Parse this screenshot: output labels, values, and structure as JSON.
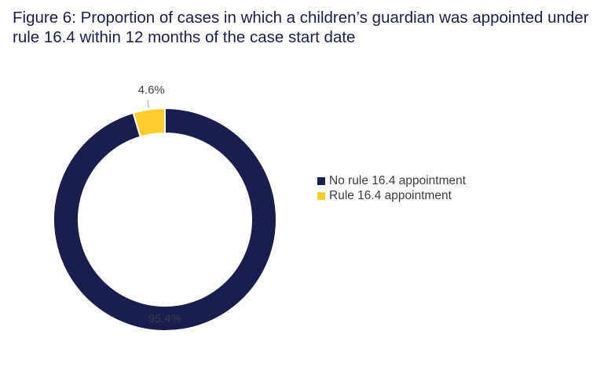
{
  "title": {
    "line1": "Figure 6: Proportion of cases in which a children’s guardian was appointed under",
    "line2": "rule 16.4 within 12 months of the case start date"
  },
  "chart_data": {
    "type": "pie",
    "variant": "donut",
    "title": "Figure 6: Proportion of cases in which a children’s guardian was appointed under rule 16.4 within 12 months of the case start date",
    "legend_position": "right",
    "series": [
      {
        "name": "Rule 16.4 appointment",
        "value": 4.6,
        "label": "4.6%",
        "color": "#ffcc2e"
      },
      {
        "name": "No rule 16.4 appointment",
        "value": 95.4,
        "label": "95.4%",
        "color": "#1b1d4f"
      }
    ]
  },
  "legend": {
    "items": [
      {
        "label": "No rule 16.4 appointment",
        "color": "#1b1d4f"
      },
      {
        "label": "Rule 16.4 appointment",
        "color": "#ffcc2e"
      }
    ]
  }
}
